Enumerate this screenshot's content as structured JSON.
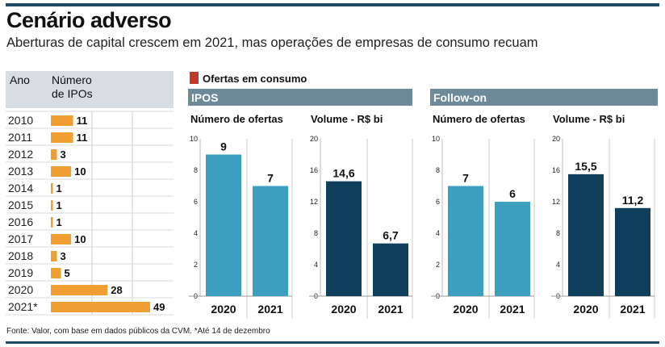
{
  "header": {
    "title": "Cenário adverso",
    "subtitle": "Aberturas de capital crescem em 2021, mas operações de empresas de consumo recuam"
  },
  "legend": {
    "label": "Ofertas em consumo",
    "color": "#c0392b"
  },
  "colors": {
    "orange": "#f0a032",
    "light_blue": "#3d9fbf",
    "dark_blue": "#0f3f5a",
    "panel_header": "#6c8a99",
    "table_header": "#d6dde3"
  },
  "source": "Fonte: Valor, com base em dados públicos da CVM. *Até 14 de dezembro",
  "chart_data": [
    {
      "type": "bar",
      "orientation": "horizontal",
      "col_headers": [
        "Ano",
        "Número\nde IPOs"
      ],
      "categories": [
        "2010",
        "2011",
        "2012",
        "2013",
        "2014",
        "2015",
        "2016",
        "2017",
        "2018",
        "2019",
        "2020",
        "2021*"
      ],
      "values": [
        11,
        11,
        3,
        10,
        1,
        1,
        1,
        10,
        3,
        5,
        28,
        49
      ],
      "xlim": [
        0,
        50
      ],
      "grid": true
    },
    {
      "type": "bar",
      "group": "IPOS",
      "title": "Número de ofertas",
      "categories": [
        "2020",
        "2021"
      ],
      "values": [
        9,
        7
      ],
      "labels": [
        "9",
        "7"
      ],
      "ylim": [
        0,
        10
      ],
      "yticks": [
        0,
        2,
        4,
        6,
        8,
        10
      ]
    },
    {
      "type": "bar",
      "group": "IPOS",
      "title": "Volume - R$ bi",
      "categories": [
        "2020",
        "2021"
      ],
      "values": [
        14.6,
        6.7
      ],
      "labels": [
        "14,6",
        "6,7"
      ],
      "ylim": [
        0,
        20
      ],
      "yticks": [
        0,
        4,
        8,
        12,
        16,
        20
      ]
    },
    {
      "type": "bar",
      "group": "Follow-on",
      "title": "Número de ofertas",
      "categories": [
        "2020",
        "2021"
      ],
      "values": [
        7,
        6
      ],
      "labels": [
        "7",
        "6"
      ],
      "ylim": [
        0,
        10
      ],
      "yticks": [
        0,
        2,
        4,
        6,
        8,
        10
      ]
    },
    {
      "type": "bar",
      "group": "Follow-on",
      "title": "Volume - R$ bi",
      "categories": [
        "2020",
        "2021"
      ],
      "values": [
        15.5,
        11.2
      ],
      "labels": [
        "15,5",
        "11,2"
      ],
      "ylim": [
        0,
        20
      ],
      "yticks": [
        0,
        4,
        8,
        12,
        16,
        20
      ]
    }
  ],
  "panels": [
    "IPOS",
    "Follow-on"
  ]
}
